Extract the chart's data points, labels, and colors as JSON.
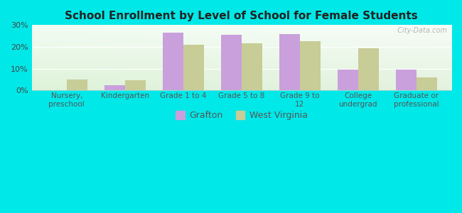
{
  "title": "School Enrollment by Level of School for Female Students",
  "categories": [
    "Nursery,\npreschool",
    "Kindergarten",
    "Grade 1 to 4",
    "Grade 5 to 8",
    "Grade 9 to\n12",
    "College\nundergrad",
    "Graduate or\nprofessional"
  ],
  "grafton": [
    0.0,
    2.5,
    26.5,
    25.5,
    26.0,
    9.5,
    9.5
  ],
  "west_virginia": [
    5.0,
    4.5,
    21.0,
    21.5,
    22.5,
    19.5,
    6.0
  ],
  "grafton_color": "#c9a0dc",
  "wv_color": "#c8cc96",
  "background_outer": "#00e8e8",
  "ylim": [
    0,
    30
  ],
  "yticks": [
    0,
    10,
    20,
    30
  ],
  "bar_width": 0.35,
  "watermark": "  City-Data.com"
}
